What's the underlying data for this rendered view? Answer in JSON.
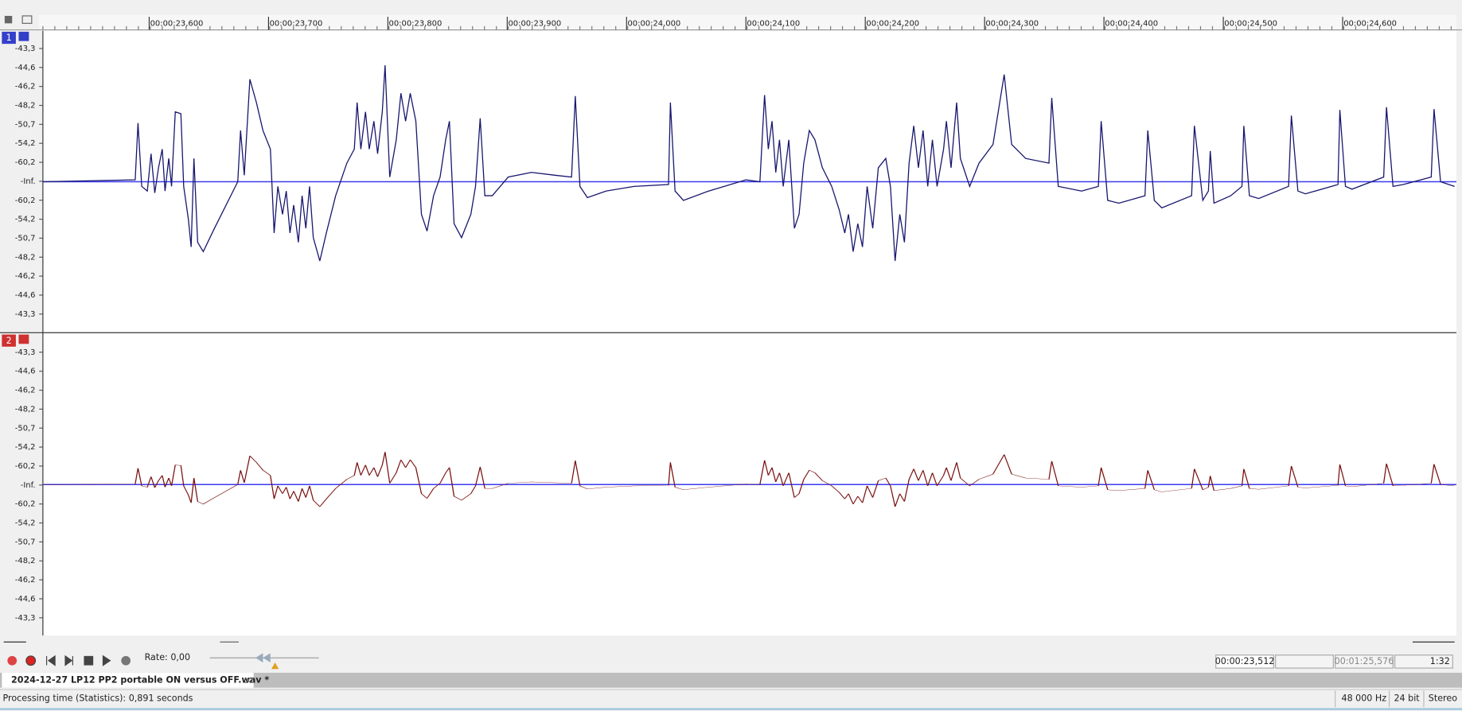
{
  "ruler": {
    "labels": [
      "00:00:23,600",
      "00:00:23,700",
      "00:00:23,800",
      "00:00:23,900",
      "00:00:24,000",
      "00:00:24,100",
      "00:00:24,200",
      "00:00:24,300",
      "00:00:24,400",
      "00:00:24,500",
      "00:00:24,600"
    ]
  },
  "channels": [
    {
      "number": "1",
      "scale": [
        "-43,3",
        "-44,6",
        "-46,2",
        "-48,2",
        "-50,7",
        "-54,2",
        "-60,2",
        "-Inf.",
        "-60,2",
        "-54,2",
        "-50,7",
        "-48,2",
        "-46,2",
        "-44,6",
        "-43,3"
      ]
    },
    {
      "number": "2",
      "scale": [
        "-43,3",
        "-44,6",
        "-46,2",
        "-48,2",
        "-50,7",
        "-54,2",
        "-60,2",
        "-Inf.",
        "-60,2",
        "-54,2",
        "-50,7",
        "-48,2",
        "-46,2",
        "-44,6",
        "-43,3"
      ]
    }
  ],
  "transport": {
    "rate": "Rate: 0,00",
    "position": "00:00:23,512",
    "length": "00:01:25,576",
    "zoom": "1:32"
  },
  "tab": {
    "title": "2024-12-27 LP12 PP2 portable ON versus OFF.wav *"
  },
  "status": {
    "message": "Processing time (Statistics): 0,891 seconds",
    "sample_rate": "48 000 Hz",
    "bit_depth": "24 bit",
    "channels": "Stereo"
  }
}
